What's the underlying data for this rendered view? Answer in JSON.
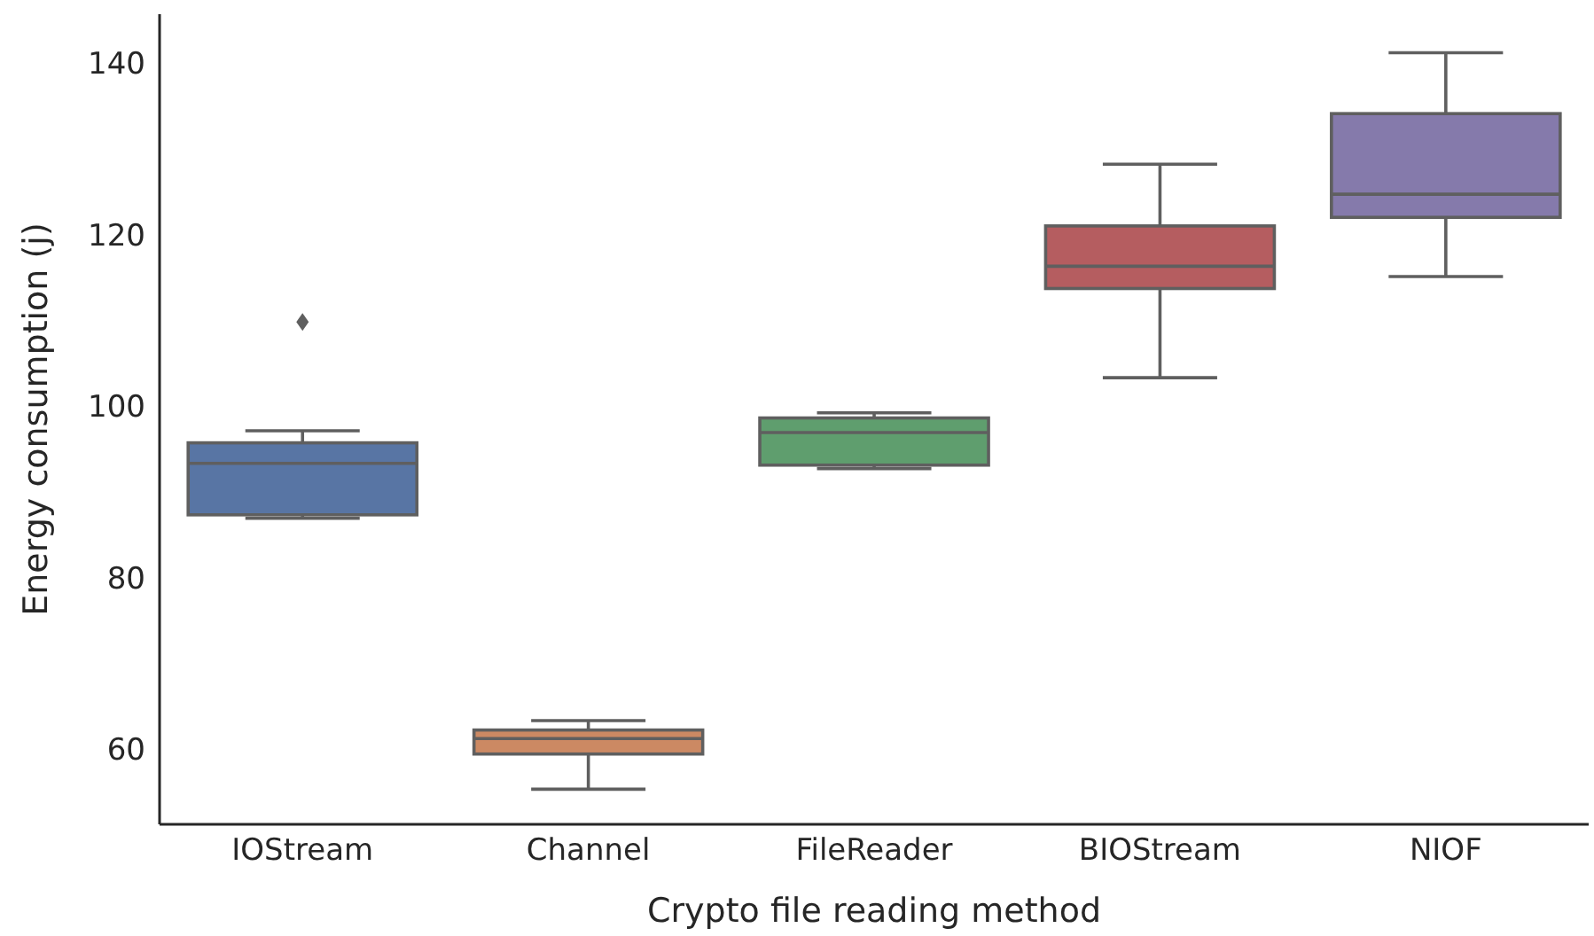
{
  "chart_data": {
    "type": "box",
    "xlabel": "Crypto file reading method",
    "ylabel": "Energy consumption (j)",
    "categories": [
      "IOStream",
      "Channel",
      "FileReader",
      "BIOStream",
      "NIOF"
    ],
    "colors": [
      "#5875a4",
      "#cc8963",
      "#5f9e6e",
      "#b55d60",
      "#857aab"
    ],
    "boxes": [
      {
        "low": 86.9,
        "q1": 87.3,
        "median": 93.3,
        "q3": 95.7,
        "high": 97.1,
        "outliers": [
          109.8
        ]
      },
      {
        "low": 55.3,
        "q1": 59.4,
        "median": 61.2,
        "q3": 62.2,
        "high": 63.3
      },
      {
        "low": 92.7,
        "q1": 93.1,
        "median": 96.9,
        "q3": 98.6,
        "high": 99.2
      },
      {
        "low": 103.3,
        "q1": 113.7,
        "median": 116.3,
        "q3": 121.0,
        "high": 128.2
      },
      {
        "low": 115.1,
        "q1": 122.0,
        "median": 124.7,
        "q3": 134.1,
        "high": 141.2
      }
    ],
    "ylim": [
      51.2,
      145.7
    ],
    "yticks": [
      60,
      80,
      100,
      120,
      140
    ],
    "grid": false
  }
}
